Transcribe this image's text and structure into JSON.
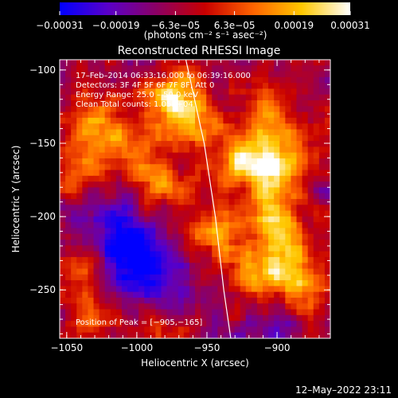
{
  "chart_data": {
    "type": "heatmap",
    "title": "Reconstructed RHESSI Image",
    "xlabel": "Heliocentric X (arcsec)",
    "ylabel": "Heliocentric Y (arcsec)",
    "xlim": [
      -1055,
      -862
    ],
    "ylim": [
      -283,
      -93
    ],
    "x_ticks": [
      -1050,
      -1000,
      -950,
      -900
    ],
    "x_tick_labels": [
      "−1050",
      "−1000",
      "−950",
      "−900"
    ],
    "y_ticks": [
      -100,
      -150,
      -200,
      -250
    ],
    "y_tick_labels": [
      "−100",
      "−150",
      "−200",
      "−250"
    ],
    "colorbar": {
      "ticks": [
        -0.00031,
        -0.00019,
        -6.3e-05,
        6.3e-05,
        0.00019,
        0.00031
      ],
      "tick_labels": [
        "−0.00031",
        "−0.00019",
        "−6.3e−05",
        "6.3e−05",
        "0.00019",
        "0.00031"
      ],
      "units": "(photons cm⁻² s⁻¹ asec⁻²)",
      "colors": [
        "#0000ff",
        "#5a00c8",
        "#8c0064",
        "#c80000",
        "#ff6400",
        "#ffc800",
        "#ffffff"
      ]
    },
    "info_lines": [
      "17–Feb–2014 06:33:16.000 to 06:39:16.000",
      "Detectors: 3F 4F 5F 6F 7F 8F, Att 0",
      "Energy Range: 25.0 – 50.0 keV",
      "Clean     Total counts: 1.05E+04"
    ],
    "peak_label": "Position of Peak = [−905,−165]",
    "limb_curve": [
      [
        -965,
        -93
      ],
      [
        -952,
        -150
      ],
      [
        -944,
        -200
      ],
      [
        -938,
        -250
      ],
      [
        -933,
        -283
      ]
    ],
    "hot_spots": [
      {
        "x": -905,
        "y": -165,
        "a": 1.0
      },
      {
        "x": -903,
        "y": -200,
        "a": 0.8
      },
      {
        "x": -895,
        "y": -230,
        "a": 0.75
      },
      {
        "x": -930,
        "y": -160,
        "a": 0.65
      },
      {
        "x": -945,
        "y": -210,
        "a": 0.7
      },
      {
        "x": -960,
        "y": -130,
        "a": 0.55
      },
      {
        "x": -975,
        "y": -120,
        "a": 0.85
      },
      {
        "x": -985,
        "y": -175,
        "a": 0.6
      },
      {
        "x": -1010,
        "y": -155,
        "a": 0.55
      },
      {
        "x": -1030,
        "y": -135,
        "a": 0.55
      },
      {
        "x": -1045,
        "y": -170,
        "a": 0.45
      },
      {
        "x": -1040,
        "y": -235,
        "a": 0.5
      },
      {
        "x": -1030,
        "y": -270,
        "a": 0.45
      },
      {
        "x": -985,
        "y": -270,
        "a": 0.45
      },
      {
        "x": -920,
        "y": -240,
        "a": 0.5
      },
      {
        "x": -880,
        "y": -250,
        "a": 0.5
      },
      {
        "x": -905,
        "y": -130,
        "a": 0.45
      },
      {
        "x": -870,
        "y": -150,
        "a": 0.35
      }
    ],
    "cold_spots": [
      {
        "x": -1005,
        "y": -225,
        "a": 1.0
      },
      {
        "x": -985,
        "y": -250,
        "a": 0.8
      },
      {
        "x": -1020,
        "y": -205,
        "a": 0.6
      },
      {
        "x": -900,
        "y": -280,
        "a": 0.5
      }
    ]
  },
  "footer": {
    "timestamp": "12–May–2022 23:11"
  }
}
